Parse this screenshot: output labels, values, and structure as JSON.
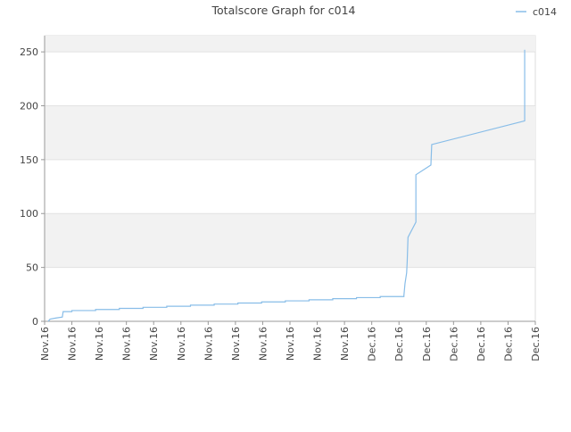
{
  "chart_data": {
    "type": "line",
    "title": "Totalscore Graph for c014",
    "legend": "top-right",
    "grid": true,
    "series": [
      {
        "name": "c014",
        "color": "#88bde8",
        "x": [
          0.13,
          0.2,
          0.4,
          0.65,
          0.68,
          1.0,
          1.0,
          1.87,
          1.87,
          2.74,
          2.74,
          3.61,
          3.61,
          4.48,
          4.48,
          5.35,
          5.35,
          6.22,
          6.22,
          7.09,
          7.09,
          7.96,
          7.96,
          8.83,
          8.83,
          9.7,
          9.7,
          10.57,
          10.57,
          11.44,
          11.44,
          12.31,
          12.31,
          13.18,
          13.18,
          13.22,
          13.28,
          13.3,
          13.33,
          13.62,
          13.62,
          14.17,
          14.2,
          17.61,
          17.61
        ],
        "values": [
          0,
          2,
          3,
          4,
          9,
          9,
          10,
          10,
          11,
          11,
          12,
          12,
          13,
          13,
          14,
          14,
          15,
          15,
          16,
          16,
          17,
          17,
          18,
          18,
          19,
          19,
          20,
          20,
          21,
          21,
          22,
          22,
          23,
          23,
          24,
          35,
          45,
          55,
          78,
          92,
          136,
          145,
          164,
          186,
          252
        ]
      }
    ],
    "xlim": [
      0,
      18
    ],
    "xticks": [
      {
        "value": 0,
        "label": "Nov.16"
      },
      {
        "value": 1,
        "label": "Nov.16"
      },
      {
        "value": 2,
        "label": "Nov.16"
      },
      {
        "value": 3,
        "label": "Nov.16"
      },
      {
        "value": 4,
        "label": "Nov.16"
      },
      {
        "value": 5,
        "label": "Nov.16"
      },
      {
        "value": 6,
        "label": "Nov.16"
      },
      {
        "value": 7,
        "label": "Nov.16"
      },
      {
        "value": 8,
        "label": "Nov.16"
      },
      {
        "value": 9,
        "label": "Nov.16"
      },
      {
        "value": 10,
        "label": "Nov.16"
      },
      {
        "value": 11,
        "label": "Nov.16"
      },
      {
        "value": 12,
        "label": "Dec.16"
      },
      {
        "value": 13,
        "label": "Dec.16"
      },
      {
        "value": 14,
        "label": "Dec.16"
      },
      {
        "value": 15,
        "label": "Dec.16"
      },
      {
        "value": 16,
        "label": "Dec.16"
      },
      {
        "value": 17,
        "label": "Dec.16"
      },
      {
        "value": 18,
        "label": "Dec.16"
      }
    ],
    "ylim": [
      0,
      265
    ],
    "yticks": [
      0,
      50,
      100,
      150,
      200,
      250
    ]
  }
}
